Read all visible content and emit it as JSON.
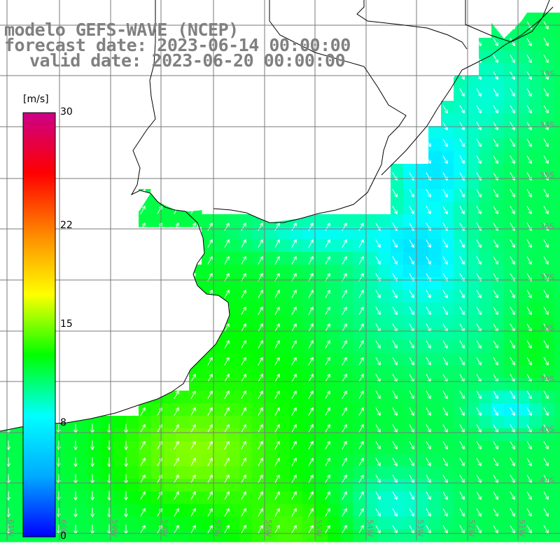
{
  "header": {
    "line1": "modelo GEFS-WAVE (NCEP)",
    "line2": "forecast date: 2023-06-14 00:00:00",
    "line3": "valid date: 2023-06-20 00:00:00"
  },
  "colorbar": {
    "unit": "[m/s]",
    "ticks": [
      "30",
      "22",
      "15",
      "8",
      "0"
    ],
    "tick_values": [
      30,
      22,
      15,
      8,
      0
    ],
    "range": [
      0,
      30
    ],
    "colors": [
      "#0000ff",
      "#00aaff",
      "#00ffff",
      "#00ff00",
      "#ffff00",
      "#ff8800",
      "#ff0000",
      "#cc0088"
    ]
  },
  "map": {
    "variable": "10 m wind speed and direction",
    "land_color": "#ffffff",
    "grid_color": "#808080",
    "lat_labels": [
      "33S",
      "34S",
      "35S",
      "36S",
      "37S",
      "38S",
      "39S",
      "40S",
      "41S"
    ],
    "lon_labels": [
      "61W",
      "60W",
      "59W",
      "58W",
      "57W",
      "56W",
      "55W",
      "54W",
      "53W",
      "52W",
      "51W"
    ]
  }
}
